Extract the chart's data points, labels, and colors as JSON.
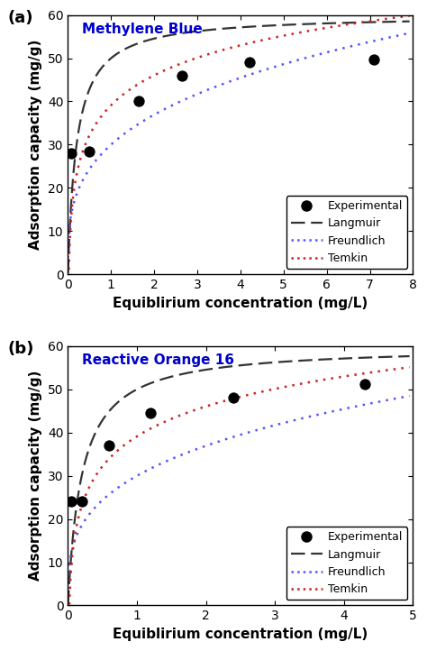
{
  "panel_a": {
    "title": "Methylene Blue",
    "title_color": "#0000CC",
    "exp_x": [
      0.08,
      0.5,
      1.65,
      2.65,
      4.2,
      7.1
    ],
    "exp_y": [
      28.0,
      28.5,
      40.2,
      46.0,
      49.0,
      49.7
    ],
    "xlim": [
      0,
      8
    ],
    "ylim": [
      0,
      60
    ],
    "xticks": [
      0,
      1,
      2,
      3,
      4,
      5,
      6,
      7,
      8
    ],
    "yticks": [
      0,
      10,
      20,
      30,
      40,
      50,
      60
    ]
  },
  "panel_b": {
    "title": "Reactive Orange 16",
    "title_color": "#0000CC",
    "exp_x": [
      0.05,
      0.2,
      0.6,
      1.2,
      2.4,
      4.3
    ],
    "exp_y": [
      24.0,
      24.0,
      37.0,
      44.5,
      48.0,
      51.2
    ],
    "xlim": [
      0,
      5
    ],
    "ylim": [
      0,
      60
    ],
    "xticks": [
      0,
      1,
      2,
      3,
      4,
      5
    ],
    "yticks": [
      0,
      10,
      20,
      30,
      40,
      50,
      60
    ]
  },
  "ylabel": "Adsorption capacity (mg/g)",
  "xlabel": "Equiblirium concentration (mg/L)",
  "langmuir_color": "#333333",
  "freundlich_color": "#5555FF",
  "temkin_color": "#CC2222",
  "exp_color": "#000000",
  "legend_labels": [
    "Experimental",
    "Langmuir",
    "Freundlich",
    "Temkin"
  ]
}
